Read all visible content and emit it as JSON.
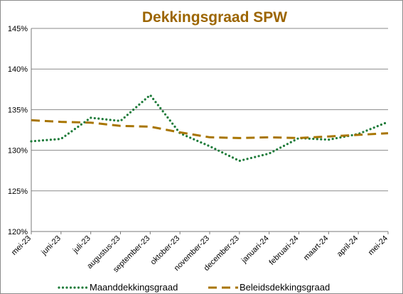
{
  "chart_data": {
    "type": "line",
    "title": "Dekkingsgraad  SPW",
    "title_color": "#9C6500",
    "categories": [
      "mei-23",
      "juni-23",
      "juli-23",
      "augustus-23",
      "september-23",
      "oktober-23",
      "november-23",
      "december-23",
      "januari-24",
      "februari-24",
      "maart-24",
      "april-24",
      "mei-24"
    ],
    "y_ticks": [
      "120%",
      "125%",
      "130%",
      "135%",
      "140%",
      "145%"
    ],
    "ylim": [
      120,
      145
    ],
    "ylabel": "",
    "xlabel": "",
    "grid": "horizontal",
    "legend_position": "bottom",
    "series": [
      {
        "name": "Maanddekkingsgraad",
        "style": "dotted",
        "color": "#1E7B3A",
        "values": [
          131.1,
          131.4,
          134.0,
          133.6,
          136.8,
          132.1,
          130.5,
          128.7,
          129.6,
          131.5,
          131.3,
          132.0,
          133.5
        ]
      },
      {
        "name": "Beleidsdekkingsgraad",
        "style": "dashed",
        "color": "#A87500",
        "values": [
          133.7,
          133.5,
          133.4,
          133.0,
          132.9,
          132.2,
          131.6,
          131.5,
          131.6,
          131.5,
          131.7,
          131.9,
          132.1
        ]
      }
    ]
  }
}
